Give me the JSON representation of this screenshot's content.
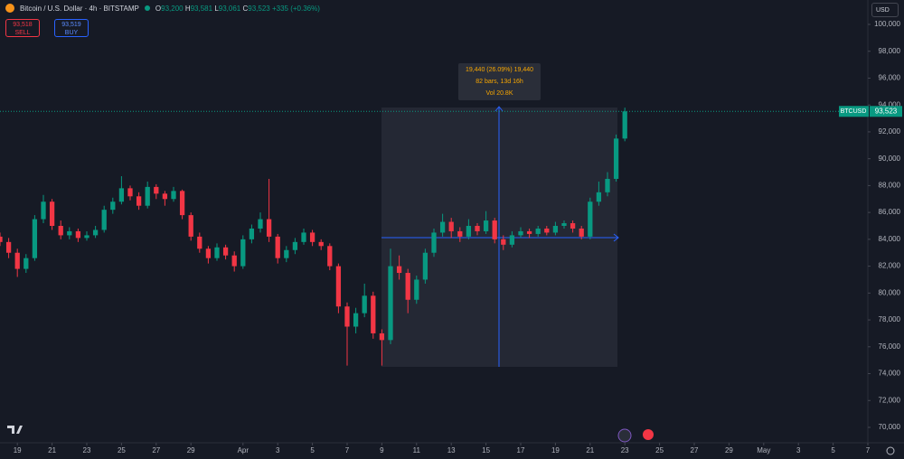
{
  "header": {
    "symbol": "Bitcoin / U.S. Dollar · 4h · BITSTAMP",
    "ohlc": [
      {
        "label": "O",
        "value": "93,200"
      },
      {
        "label": "H",
        "value": "93,581"
      },
      {
        "label": "L",
        "value": "93,061"
      },
      {
        "label": "C",
        "value": "93,523"
      }
    ],
    "change": "+335 (+0.36%)"
  },
  "trade": {
    "sell_price": "93,518",
    "sell_label": "SELL",
    "buy_price": "93,519",
    "buy_label": "BUY"
  },
  "currency": "USD",
  "measure": {
    "line1": "19,440 (26.09%) 19,440",
    "line2": "82 bars, 13d 16h",
    "line3": "Vol 20.8K"
  },
  "chart_data": {
    "type": "candlestick",
    "last_price": {
      "symbol": "BTCUSD",
      "value": 93523,
      "label": "93,523"
    },
    "up_color": "#089981",
    "down_color": "#f23645",
    "x": [
      -1,
      -0.5,
      0,
      0.5,
      1,
      1.5,
      2,
      2.5,
      3,
      3.5,
      4,
      4.5,
      5,
      5.5,
      6,
      6.5,
      7,
      7.5,
      8,
      8.5,
      9,
      9.5,
      10,
      10.5,
      11,
      11.5,
      12,
      12.5,
      13,
      13.5,
      14,
      14.5,
      15,
      15.5,
      16,
      16.5,
      17,
      17.5,
      18,
      18.5,
      19,
      19.5,
      20,
      20.5,
      21,
      21.5,
      22,
      22.5,
      23,
      23.5,
      24,
      24.5,
      25,
      25.5,
      26,
      26.5,
      27,
      27.5,
      28,
      28.5,
      29,
      29.5,
      30,
      30.5,
      31,
      31.5,
      32,
      32.5,
      33,
      33.5,
      34,
      34.5,
      35
    ],
    "open": [
      84200,
      83800,
      83000,
      81800,
      82600,
      85500,
      86800,
      85000,
      84300,
      84600,
      84100,
      84300,
      84700,
      86200,
      86800,
      87800,
      87200,
      86500,
      87900,
      87400,
      87000,
      87600,
      85800,
      84200,
      83300,
      82600,
      83400,
      82800,
      82000,
      84000,
      84800,
      85500,
      84200,
      82600,
      83200,
      83800,
      84500,
      83800,
      83500,
      82000,
      79000,
      77500,
      78500,
      79800,
      77000,
      76500,
      82000,
      81500,
      79500,
      81000,
      83000,
      84500,
      85300,
      84600,
      84200,
      85000,
      84600,
      85400,
      84000,
      83600,
      84300,
      84600,
      84400,
      84800,
      84500,
      85000,
      85200,
      84800,
      84200,
      86800,
      87500,
      88500,
      91500
    ],
    "high": [
      84500,
      84100,
      83300,
      82900,
      85800,
      87300,
      87000,
      85400,
      84900,
      84800,
      84600,
      85000,
      86500,
      87100,
      88700,
      88000,
      87500,
      88300,
      88100,
      87600,
      87900,
      87700,
      86000,
      84500,
      83500,
      83700,
      83600,
      83100,
      84300,
      85100,
      86000,
      88500,
      84400,
      83500,
      84100,
      84800,
      84700,
      84000,
      83700,
      82200,
      79300,
      78900,
      80700,
      80100,
      77300,
      83300,
      82800,
      81800,
      81300,
      83300,
      84800,
      85900,
      85600,
      84900,
      85500,
      85200,
      86100,
      85600,
      84300,
      84600,
      84900,
      84800,
      85000,
      85000,
      85300,
      85400,
      85400,
      85000,
      87100,
      88300,
      89000,
      91800,
      93800
    ],
    "low": [
      83500,
      82600,
      81200,
      81500,
      82400,
      85200,
      84700,
      84000,
      84000,
      83800,
      83900,
      84100,
      84500,
      85900,
      86600,
      86900,
      86200,
      86300,
      87000,
      86500,
      86800,
      85500,
      83900,
      83000,
      82200,
      82400,
      82500,
      81600,
      81800,
      83700,
      84500,
      83800,
      82200,
      82300,
      82900,
      83600,
      83500,
      83200,
      81700,
      78500,
      74600,
      77000,
      78200,
      76600,
      74600,
      76200,
      81000,
      78500,
      79200,
      80700,
      82700,
      84200,
      84100,
      83800,
      84000,
      84300,
      84400,
      83700,
      83200,
      83400,
      84100,
      84100,
      84200,
      84300,
      84300,
      84800,
      84500,
      84000,
      84000,
      86500,
      87200,
      88300,
      91300
    ],
    "close": [
      83800,
      83000,
      81800,
      82600,
      85500,
      86800,
      85000,
      84300,
      84600,
      84100,
      84300,
      84700,
      86200,
      86800,
      87800,
      87200,
      86500,
      87900,
      87400,
      87000,
      87600,
      85800,
      84200,
      83300,
      82600,
      83400,
      82800,
      82000,
      84000,
      84800,
      85500,
      84200,
      82600,
      83200,
      83800,
      84500,
      83800,
      83500,
      82000,
      79000,
      77500,
      78500,
      79800,
      77000,
      76500,
      82000,
      81500,
      79500,
      81000,
      83000,
      84500,
      85300,
      84600,
      84200,
      85000,
      84600,
      85400,
      84000,
      83600,
      84300,
      84600,
      84400,
      84800,
      84500,
      85000,
      85200,
      84800,
      84200,
      86800,
      87500,
      88500,
      91500,
      93523
    ],
    "xlim": [
      -1,
      49
    ],
    "xticks": [
      {
        "value": 0,
        "label": "19"
      },
      {
        "value": 2,
        "label": "21"
      },
      {
        "value": 4,
        "label": "23"
      },
      {
        "value": 6,
        "label": "25"
      },
      {
        "value": 8,
        "label": "27"
      },
      {
        "value": 10,
        "label": "29"
      },
      {
        "value": 13,
        "label": "Apr"
      },
      {
        "value": 15,
        "label": "3"
      },
      {
        "value": 17,
        "label": "5"
      },
      {
        "value": 19,
        "label": "7"
      },
      {
        "value": 21,
        "label": "9"
      },
      {
        "value": 23,
        "label": "11"
      },
      {
        "value": 25,
        "label": "13"
      },
      {
        "value": 27,
        "label": "15"
      },
      {
        "value": 29,
        "label": "17"
      },
      {
        "value": 31,
        "label": "19"
      },
      {
        "value": 33,
        "label": "21"
      },
      {
        "value": 35,
        "label": "23"
      },
      {
        "value": 37,
        "label": "25"
      },
      {
        "value": 39,
        "label": "27"
      },
      {
        "value": 41,
        "label": "29"
      },
      {
        "value": 43,
        "label": "May"
      },
      {
        "value": 45,
        "label": "3"
      },
      {
        "value": 47,
        "label": "5"
      },
      {
        "value": 49,
        "label": "7"
      }
    ],
    "ylim": [
      70000,
      100000
    ],
    "yticks": [
      {
        "value": 70000,
        "label": "70,000"
      },
      {
        "value": 72000,
        "label": "72,000"
      },
      {
        "value": 74000,
        "label": "74,000"
      },
      {
        "value": 76000,
        "label": "76,000"
      },
      {
        "value": 78000,
        "label": "78,000"
      },
      {
        "value": 80000,
        "label": "80,000"
      },
      {
        "value": 82000,
        "label": "82,000"
      },
      {
        "value": 84000,
        "label": "84,000"
      },
      {
        "value": 86000,
        "label": "86,000"
      },
      {
        "value": 88000,
        "label": "88,000"
      },
      {
        "value": 90000,
        "label": "90,000"
      },
      {
        "value": 92000,
        "label": "92,000"
      },
      {
        "value": 94000,
        "label": "94,000"
      },
      {
        "value": 96000,
        "label": "96,000"
      },
      {
        "value": 98000,
        "label": "98,000"
      },
      {
        "value": 100000,
        "label": "100,000"
      }
    ],
    "grid": false
  }
}
